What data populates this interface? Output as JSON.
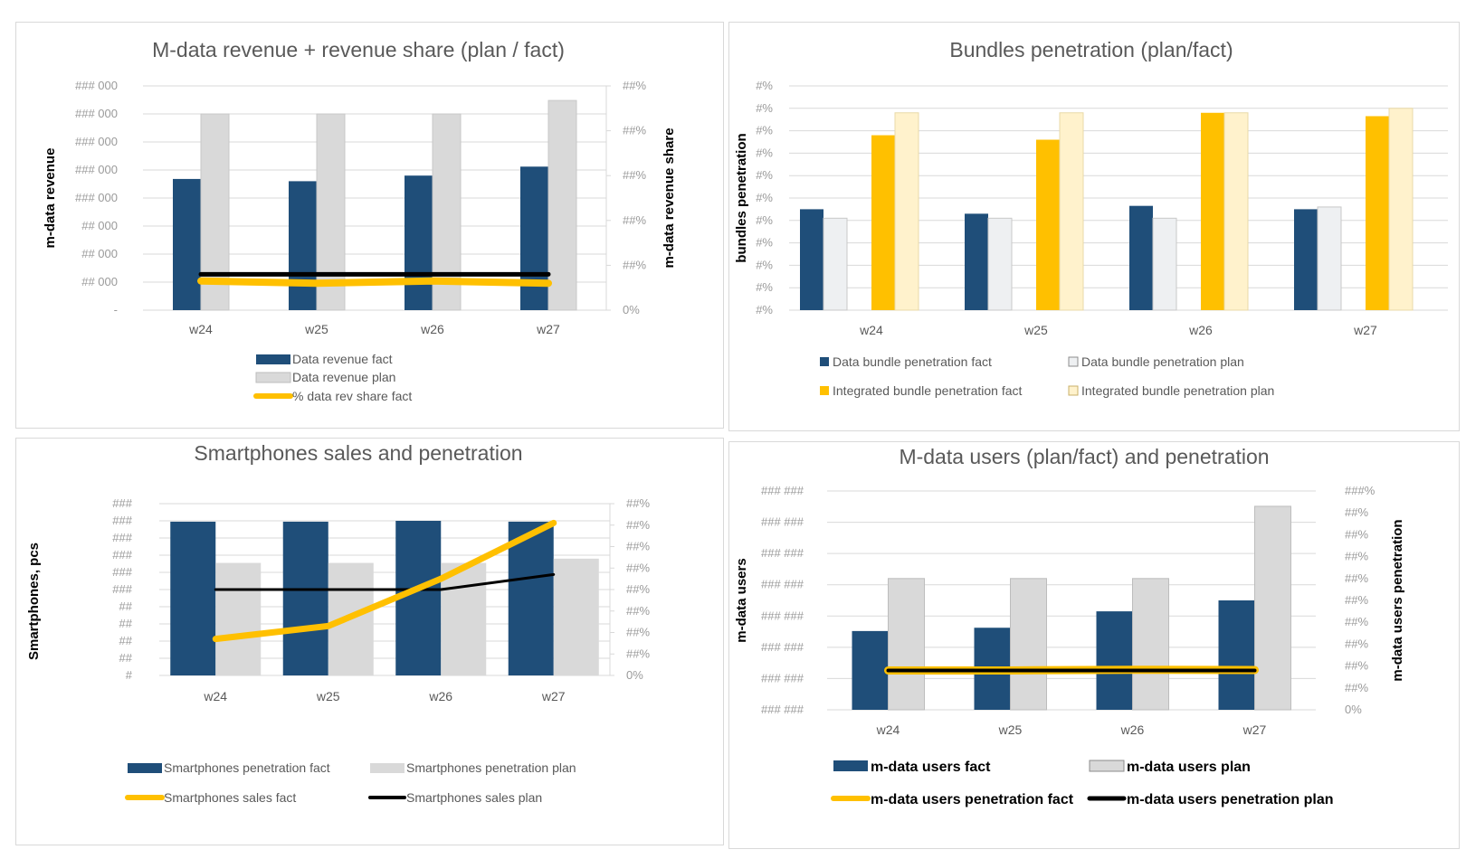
{
  "colors": {
    "navy": "#1f4e79",
    "light_gray": "#d9d9d9",
    "very_light_gray": "#eef0f2",
    "gold": "#ffc000",
    "light_gold": "#fff2cc",
    "black": "#000000",
    "grid": "#d9d9d9"
  },
  "chart_data": [
    {
      "id": "p1",
      "type": "bar",
      "title": "M-data revenue + revenue share (plan / fact)",
      "ylabel": "m-data revenue",
      "y2label": "m-data revenue share",
      "categories": [
        "w24",
        "w25",
        "w26",
        "w27"
      ],
      "series": [
        {
          "name": "Data revenue fact",
          "type": "bar",
          "axis": "left",
          "values": [
            117000,
            115000,
            120000,
            128000
          ]
        },
        {
          "name": "Data revenue plan",
          "type": "bar",
          "axis": "left",
          "values": [
            175000,
            175000,
            175000,
            187000
          ]
        },
        {
          "name": "% data rev share fact",
          "type": "line",
          "axis": "right",
          "values": [
            6.5,
            6,
            6.5,
            6
          ]
        },
        {
          "type": "line",
          "axis": "right",
          "values": [
            8,
            8,
            8,
            8
          ]
        }
      ],
      "ylim": [
        0,
        200000
      ],
      "y2lim": [
        0,
        50
      ],
      "yticks": [
        "-",
        "## 000",
        "## 000",
        "## 000",
        "### 000",
        "### 000",
        "### 000",
        "### 000",
        "### 000"
      ],
      "y2ticks": [
        "0%",
        "##%",
        "##%",
        "##%",
        "##%",
        "##%"
      ],
      "legend": "bottom"
    },
    {
      "id": "p2",
      "type": "bar",
      "title": "Bundles penetration (plan/fact)",
      "ylabel": "bundles penetration",
      "categories": [
        "w24",
        "w25",
        "w26",
        "w27"
      ],
      "series": [
        {
          "name": "Data bundle penetration fact",
          "values": [
            4.5,
            4.3,
            4.65,
            4.5
          ]
        },
        {
          "name": "Data bundle penetration plan",
          "values": [
            4.1,
            4.1,
            4.1,
            4.6
          ]
        },
        {
          "name": "Integrated bundle penetration  fact",
          "values": [
            7.8,
            7.6,
            8.8,
            8.65
          ]
        },
        {
          "name": "Integrated bundle penetration  plan",
          "values": [
            8.8,
            8.8,
            8.8,
            9.0
          ]
        }
      ],
      "ylim": [
        0,
        10
      ],
      "yticks": [
        "#%",
        "#%",
        "#%",
        "#%",
        "#%",
        "#%",
        "#%",
        "#%",
        "#%",
        "#%",
        "#%"
      ],
      "legend": "bottom"
    },
    {
      "id": "p3",
      "type": "bar",
      "title": "Smartphones sales and penetration",
      "ylabel": "Smartphones, pcs",
      "categories": [
        "w24",
        "w25",
        "w26",
        "w27"
      ],
      "series": [
        {
          "name": "Smartphones penetration fact",
          "type": "bar",
          "axis": "left",
          "values": [
            179,
            179,
            180,
            179
          ]
        },
        {
          "name": "Smartphones penetration plan",
          "type": "bar",
          "axis": "left",
          "values": [
            131,
            131,
            131,
            136
          ]
        },
        {
          "name": "Smartphones sales fact",
          "type": "line",
          "axis": "right",
          "values": [
            17,
            23,
            45,
            71
          ]
        },
        {
          "name": "Smartphones sales plan",
          "type": "line",
          "axis": "right",
          "values": [
            40,
            40,
            40,
            47
          ]
        }
      ],
      "ylim": [
        0,
        200
      ],
      "y2lim": [
        0,
        80
      ],
      "yticks": [
        "#",
        "##",
        "##",
        "##",
        "##",
        "###",
        "###",
        "###",
        "###",
        "###",
        "###"
      ],
      "y2ticks": [
        "0%",
        "##%",
        "##%",
        "##%",
        "##%",
        "##%",
        "##%",
        "##%",
        "##%"
      ],
      "legend": "bottom"
    },
    {
      "id": "p4",
      "type": "bar",
      "title": "M-data users (plan/fact) and penetration",
      "ylabel": "m-data users",
      "y2label": "m-data users penetration",
      "categories": [
        "w24",
        "w25",
        "w26",
        "w27"
      ],
      "series": [
        {
          "name": "m-data users fact",
          "type": "bar",
          "axis": "left",
          "values": [
            436000,
            437500,
            445000,
            450000
          ]
        },
        {
          "name": "m-data users plan",
          "type": "bar",
          "axis": "left",
          "values": [
            460000,
            460000,
            460000,
            493000
          ]
        },
        {
          "name": "m-data users penetration fact",
          "type": "line",
          "axis": "right",
          "values": [
            18,
            18,
            18.3,
            18.2
          ]
        },
        {
          "name": "m-data users penetration plan",
          "type": "line",
          "axis": "right",
          "values": [
            18,
            18,
            18,
            18
          ]
        }
      ],
      "ylim": [
        400000,
        500000
      ],
      "y2lim": [
        0,
        100
      ],
      "yticks": [
        "### ###",
        "### ###",
        "### ###",
        "### ###",
        "### ###",
        "### ###",
        "### ###",
        "### ###"
      ],
      "y2ticks": [
        "0%",
        "##%",
        "##%",
        "##%",
        "##%",
        "##%",
        "##%",
        "##%",
        "##%",
        "##%",
        "###%"
      ],
      "legend": "bottom"
    }
  ]
}
